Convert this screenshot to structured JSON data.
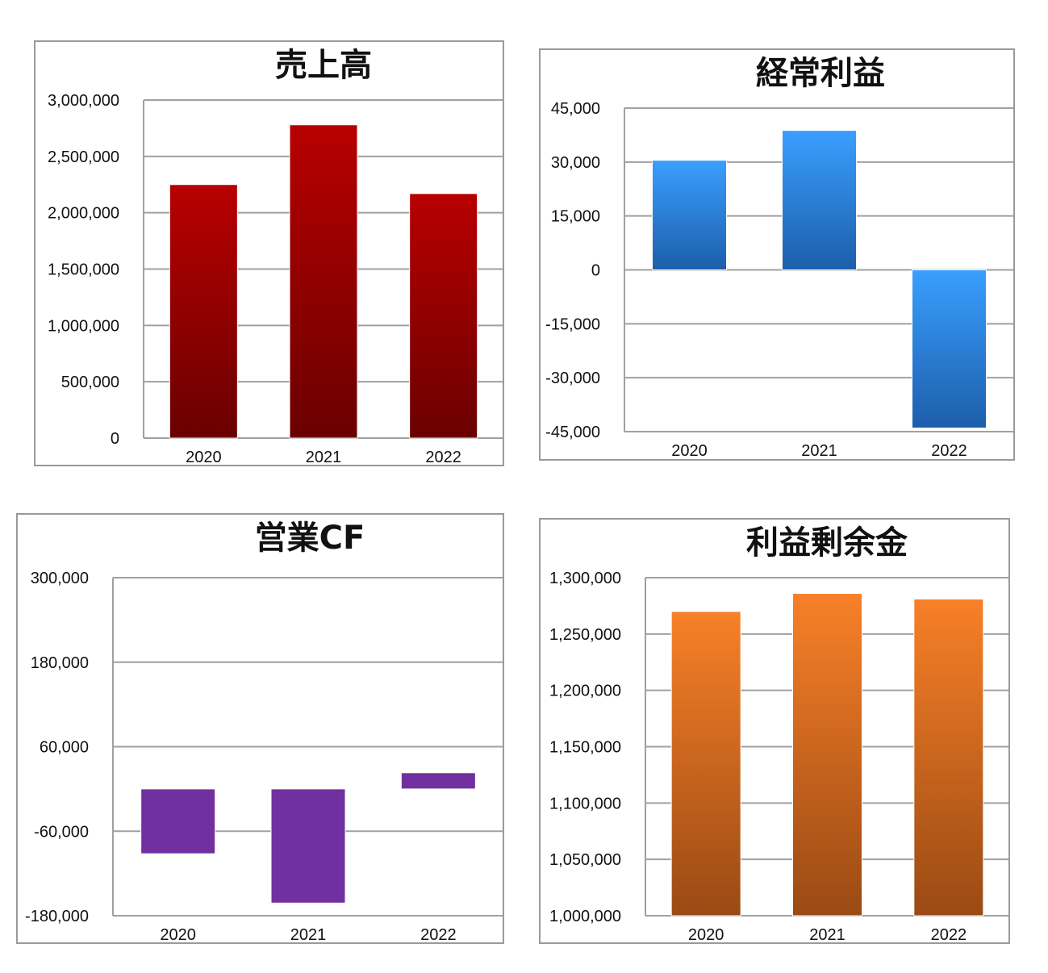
{
  "colors": {
    "sales": "#b00000",
    "ordinary_profit": "#3399ff",
    "operating_cf": "#7030a0",
    "retained_earnings": "#f57f28",
    "grid": "#a0a0a0"
  },
  "chart_data": [
    {
      "type": "bar",
      "title": "売上高",
      "categories": [
        "2020",
        "2021",
        "2022"
      ],
      "values": [
        2250000,
        2780000,
        2170000
      ],
      "ylim": [
        0,
        3000000
      ],
      "yticks": [
        0,
        500000,
        1000000,
        1500000,
        2000000,
        2500000,
        3000000
      ],
      "ytick_labels": [
        "0",
        "500,000",
        "1,000,000",
        "1,500,000",
        "2,000,000",
        "2,500,000",
        "3,000,000"
      ],
      "grid": true,
      "color": "#b00000"
    },
    {
      "type": "bar",
      "title": "経常利益",
      "categories": [
        "2020",
        "2021",
        "2022"
      ],
      "values": [
        30500,
        38800,
        -44000
      ],
      "ylim": [
        -45000,
        45000
      ],
      "yticks": [
        -45000,
        -30000,
        -15000,
        0,
        15000,
        30000,
        45000
      ],
      "ytick_labels": [
        "-45,000",
        "-30,000",
        "-15,000",
        "0",
        "15,000",
        "30,000",
        "45,000"
      ],
      "grid": true,
      "color": "#3399ff"
    },
    {
      "type": "bar",
      "title": "営業CF",
      "categories": [
        "2020",
        "2021",
        "2022"
      ],
      "values": [
        -92000,
        -162000,
        23000
      ],
      "ylim": [
        -180000,
        300000
      ],
      "yticks": [
        -180000,
        -60000,
        60000,
        180000,
        300000
      ],
      "ytick_labels": [
        "-180,000",
        "-60,000",
        "60,000",
        "180,000",
        "300,000"
      ],
      "grid": true,
      "color": "#7030a0"
    },
    {
      "type": "bar",
      "title": "利益剰余金",
      "categories": [
        "2020",
        "2021",
        "2022"
      ],
      "values": [
        1270000,
        1286000,
        1281000
      ],
      "ylim": [
        1000000,
        1300000
      ],
      "yticks": [
        1000000,
        1050000,
        1100000,
        1150000,
        1200000,
        1250000,
        1300000
      ],
      "ytick_labels": [
        "1,000,000",
        "1,050,000",
        "1,100,000",
        "1,150,000",
        "1,200,000",
        "1,250,000",
        "1,300,000"
      ],
      "grid": true,
      "color": "#f57f28"
    }
  ]
}
